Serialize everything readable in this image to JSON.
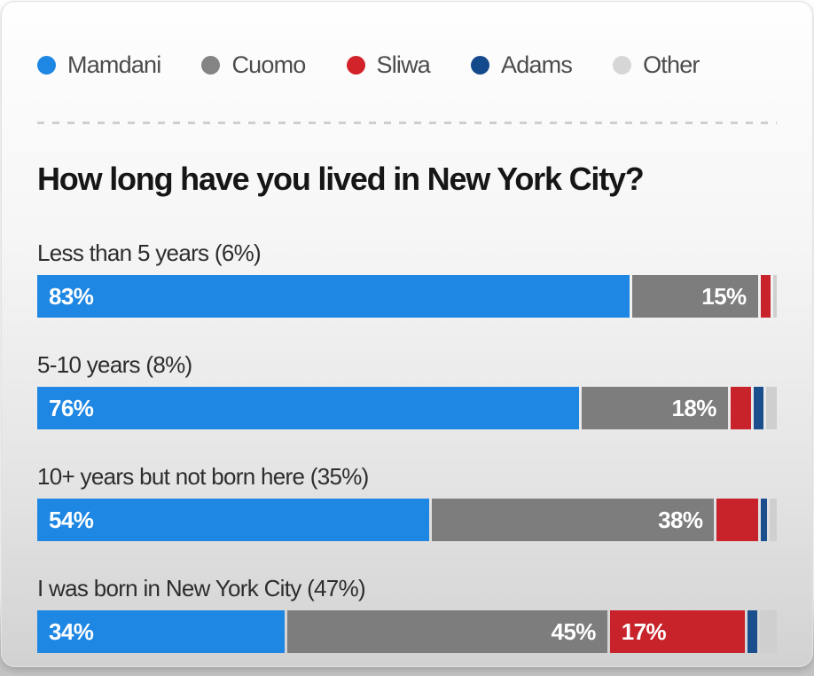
{
  "title": "How long have you lived in New York City?",
  "legend": {
    "items": [
      {
        "name": "mamdani",
        "label": "Mamdani",
        "color": "#1e87e3"
      },
      {
        "name": "cuomo",
        "label": "Cuomo",
        "color": "#848484"
      },
      {
        "name": "sliwa",
        "label": "Sliwa",
        "color": "#d2222a"
      },
      {
        "name": "adams",
        "label": "Adams",
        "color": "#14498b"
      },
      {
        "name": "other",
        "label": "Other",
        "color": "#d6d6d6"
      }
    ]
  },
  "chart_data": {
    "type": "bar",
    "variant": "horizontal-stacked",
    "title": "How long have you lived in New York City?",
    "unit": "%",
    "xlim": [
      0,
      100
    ],
    "grid": false,
    "legend_position": "top",
    "series": [
      "Mamdani",
      "Cuomo",
      "Sliwa",
      "Adams",
      "Other"
    ],
    "series_colors": [
      "#1e87e3",
      "#7d7d7d",
      "#c8222a",
      "#1b4e8c",
      "#cfcfcf"
    ],
    "series_label_align": [
      "left",
      "right",
      "left",
      "left",
      "left"
    ],
    "label_threshold": 10,
    "categories": [
      "Less than 5 years (6%)",
      "5-10 years (8%)",
      "10+ years but not born here (35%)",
      "I was born in New York City (47%)"
    ],
    "rows": [
      {
        "label": "Less than 5 years (6%)",
        "values": [
          83,
          15,
          1.5,
          0,
          0.5
        ]
      },
      {
        "label": "5-10 years (8%)",
        "values": [
          76,
          18,
          3,
          1.5,
          1.5
        ]
      },
      {
        "label": "10+ years but not born here (35%)",
        "values": [
          54,
          38,
          6,
          1,
          1
        ]
      },
      {
        "label": "I was born in New York City (47%)",
        "values": [
          34,
          45,
          17,
          1.5,
          2.5
        ]
      }
    ]
  }
}
